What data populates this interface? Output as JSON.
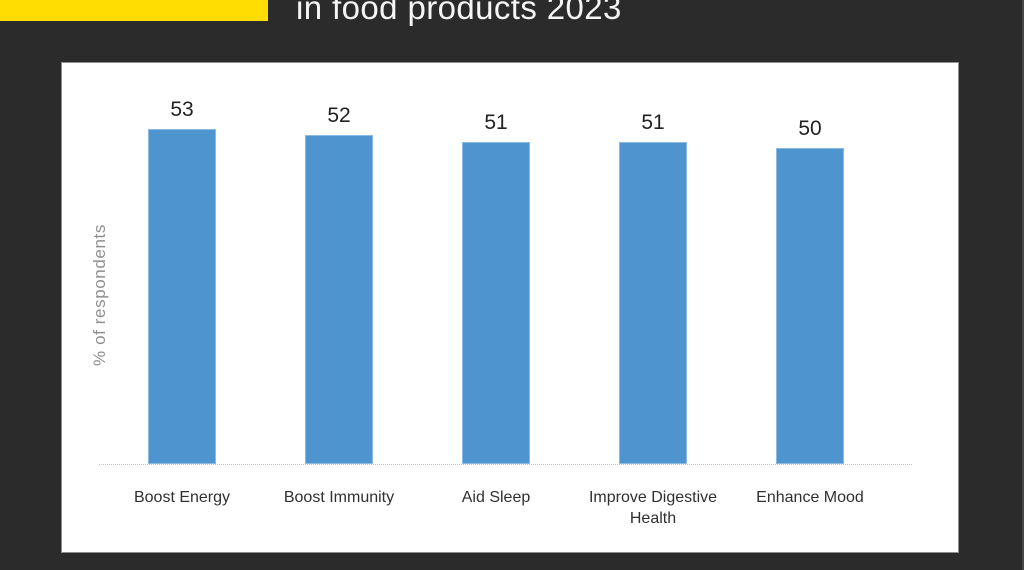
{
  "header": {
    "title_visible_line": "in food products 2023",
    "accent_color": "#FFDC02"
  },
  "colors": {
    "background": "#2B2B2B",
    "panel": "#FFFFFF",
    "bar": "#4E95D0",
    "axis_line": "#C6C6C6",
    "ylabel_text": "#8F8F8F",
    "value_text": "#222222",
    "category_text": "#303030",
    "title_text": "#F5F5F5"
  },
  "chart_data": {
    "type": "bar",
    "title": "in food products 2023",
    "categories": [
      "Boost Energy",
      "Boost Immunity",
      "Aid Sleep",
      "Improve Digestive Health",
      "Enhance Mood"
    ],
    "values": [
      53,
      52,
      51,
      51,
      50
    ],
    "xlabel": "",
    "ylabel": "% of respondents",
    "ylim": [
      0,
      56
    ],
    "grid": "off",
    "legend": "none",
    "value_labels": "above-bars",
    "axis": "x-baseline-dotted-only",
    "bar_color": "#4E95D0"
  }
}
